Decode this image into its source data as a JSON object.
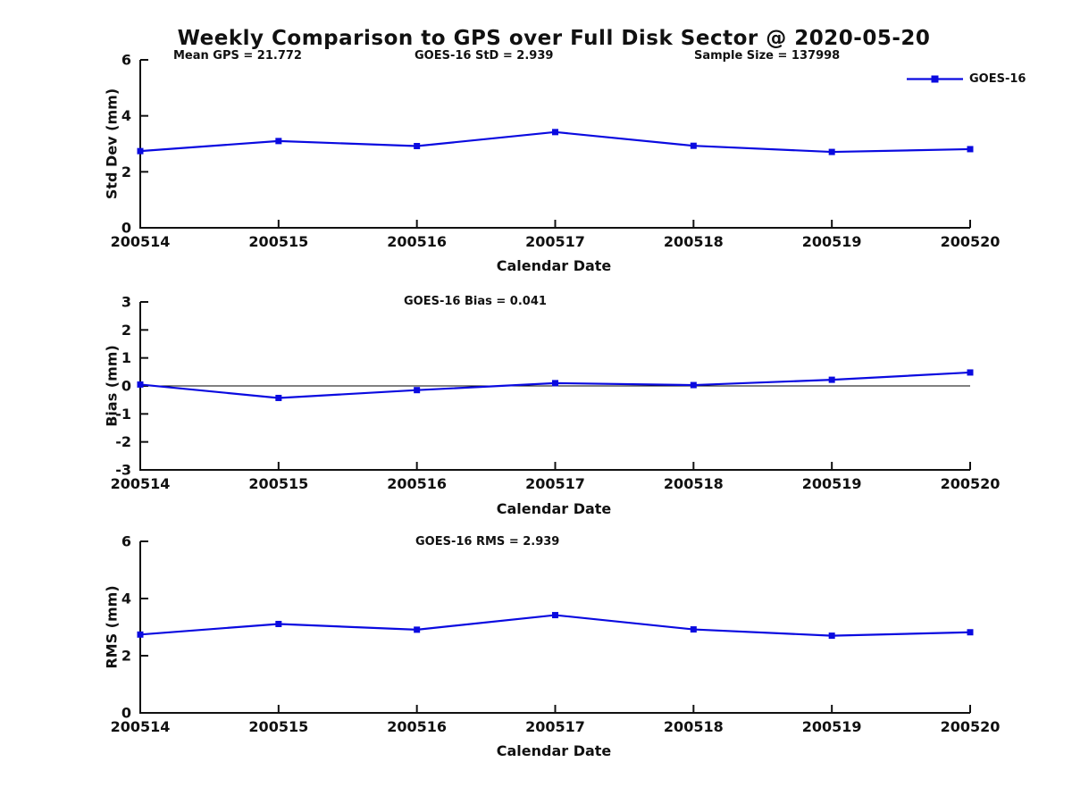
{
  "title": "Weekly Comparison to GPS over Full Disk Sector @ 2020-05-20",
  "legend": {
    "label": "GOES-16"
  },
  "colors": {
    "series": "#0a0ae0",
    "axis": "#111111",
    "zero_line": "#000000"
  },
  "annotations": {
    "mean_gps": "Mean GPS = 21.772",
    "std": "GOES-16 StD = 2.939",
    "sample_size": "Sample Size = 137998",
    "bias": "GOES-16 Bias  = 0.041",
    "rms": "GOES-16 RMS = 2.939"
  },
  "chart_data": [
    {
      "type": "line",
      "series": [
        {
          "name": "GOES-16",
          "values": [
            2.74,
            3.1,
            2.92,
            3.42,
            2.93,
            2.71,
            2.81
          ]
        }
      ],
      "categories": [
        "200514",
        "200515",
        "200516",
        "200517",
        "200518",
        "200519",
        "200520"
      ],
      "title": "Mean GPS = 21.772   GOES-16 StD = 2.939   Sample Size = 137998",
      "xlabel": "Calendar Date",
      "ylabel": "Std Dev (mm)",
      "ylim": [
        0,
        6
      ],
      "yticks": [
        0,
        2,
        4,
        6
      ],
      "grid": false,
      "legend_position": "upper-right-outside",
      "marker": "square"
    },
    {
      "type": "line",
      "series": [
        {
          "name": "GOES-16",
          "values": [
            0.05,
            -0.43,
            -0.15,
            0.1,
            0.03,
            0.22,
            0.48
          ]
        }
      ],
      "categories": [
        "200514",
        "200515",
        "200516",
        "200517",
        "200518",
        "200519",
        "200520"
      ],
      "title": "GOES-16 Bias  = 0.041",
      "xlabel": "Calendar Date",
      "ylabel": "Bias (mm)",
      "ylim": [
        -3,
        3
      ],
      "yticks": [
        3,
        2,
        1,
        0,
        -1,
        -2,
        -3
      ],
      "zero_line": true,
      "grid": false,
      "marker": "square"
    },
    {
      "type": "line",
      "series": [
        {
          "name": "GOES-16",
          "values": [
            2.74,
            3.11,
            2.91,
            3.42,
            2.92,
            2.7,
            2.82
          ]
        }
      ],
      "categories": [
        "200514",
        "200515",
        "200516",
        "200517",
        "200518",
        "200519",
        "200520"
      ],
      "title": "GOES-16 RMS = 2.939",
      "xlabel": "Calendar Date",
      "ylabel": "RMS (mm)",
      "ylim": [
        0,
        6
      ],
      "yticks": [
        0,
        2,
        4,
        6
      ],
      "grid": false,
      "marker": "square"
    }
  ]
}
